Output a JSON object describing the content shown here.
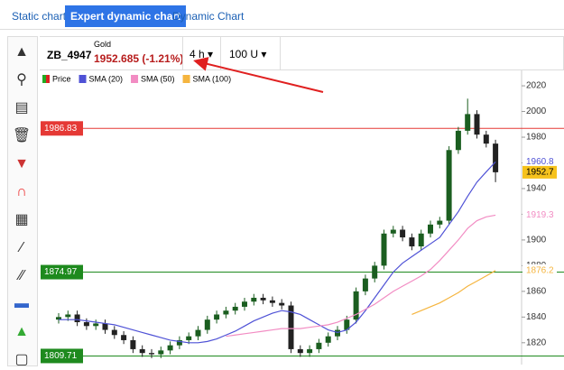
{
  "tabs": [
    "Static chart",
    "Expert dynamic chart",
    "Dynamic Chart"
  ],
  "header": {
    "symbol": "ZB_4947",
    "name": "Gold",
    "quote": "1952.685 (-1.21%)",
    "interval": "4 h",
    "units": "100 U"
  },
  "chart_data": {
    "type": "candlestick",
    "ylim": [
      1803,
      2032
    ],
    "yticks": [
      1820,
      1840,
      1860,
      1880,
      1900,
      1920,
      1940,
      1960,
      1980,
      2000,
      2020
    ],
    "price": {
      "name": "Price",
      "up_color": "#1b5e20",
      "down_color": "#222222",
      "open": [
        1838,
        1840,
        1842,
        1836,
        1833,
        1835,
        1830,
        1826,
        1822,
        1815,
        1812,
        1811,
        1814,
        1818,
        1822,
        1825,
        1830,
        1838,
        1842,
        1845,
        1848,
        1852,
        1855,
        1853,
        1851,
        1849,
        1815,
        1812,
        1815,
        1820,
        1825,
        1830,
        1838,
        1860,
        1870,
        1880,
        1905,
        1908,
        1902,
        1895,
        1905,
        1912,
        1915,
        1970,
        1985,
        1998,
        1982,
        1975
      ],
      "high": [
        1843,
        1845,
        1845,
        1839,
        1838,
        1838,
        1833,
        1829,
        1825,
        1818,
        1815,
        1817,
        1821,
        1825,
        1828,
        1833,
        1841,
        1845,
        1848,
        1851,
        1855,
        1858,
        1858,
        1856,
        1854,
        1852,
        1818,
        1818,
        1823,
        1828,
        1833,
        1841,
        1863,
        1873,
        1883,
        1908,
        1911,
        1911,
        1905,
        1908,
        1915,
        1918,
        1973,
        1988,
        2010,
        2001,
        1985,
        1978
      ],
      "low": [
        1835,
        1837,
        1833,
        1830,
        1830,
        1827,
        1823,
        1819,
        1812,
        1809,
        1808,
        1808,
        1811,
        1815,
        1819,
        1822,
        1827,
        1835,
        1839,
        1842,
        1845,
        1849,
        1850,
        1848,
        1846,
        1812,
        1809,
        1809,
        1812,
        1817,
        1822,
        1827,
        1835,
        1857,
        1867,
        1877,
        1902,
        1899,
        1892,
        1892,
        1902,
        1909,
        1912,
        1967,
        1982,
        1979,
        1972,
        1945
      ],
      "close": [
        1840,
        1842,
        1836,
        1833,
        1835,
        1830,
        1826,
        1822,
        1815,
        1812,
        1811,
        1814,
        1818,
        1822,
        1825,
        1830,
        1838,
        1842,
        1845,
        1848,
        1852,
        1855,
        1853,
        1851,
        1849,
        1815,
        1812,
        1815,
        1820,
        1825,
        1830,
        1838,
        1860,
        1870,
        1880,
        1905,
        1908,
        1902,
        1895,
        1905,
        1912,
        1915,
        1970,
        1985,
        1998,
        1982,
        1975,
        1952.7
      ]
    },
    "series": [
      {
        "name": "SMA (20)",
        "color": "#4f52d6",
        "values": [
          1838,
          1838,
          1838,
          1837,
          1836,
          1835,
          1834,
          1832,
          1830,
          1828,
          1826,
          1824,
          1822,
          1821,
          1820,
          1820,
          1821,
          1823,
          1826,
          1829,
          1833,
          1837,
          1840,
          1843,
          1845,
          1844,
          1842,
          1838,
          1834,
          1830,
          1828,
          1830,
          1836,
          1845,
          1855,
          1865,
          1875,
          1882,
          1887,
          1892,
          1897,
          1902,
          1912,
          1922,
          1934,
          1945,
          1953,
          1960.8
        ]
      },
      {
        "name": "SMA (50)",
        "color": "#f28cc3",
        "values": [
          null,
          null,
          null,
          null,
          null,
          null,
          null,
          null,
          null,
          null,
          null,
          null,
          null,
          null,
          null,
          null,
          null,
          null,
          1825,
          1826,
          1827,
          1828,
          1829,
          1830,
          1831,
          1831,
          1831,
          1832,
          1833,
          1834,
          1836,
          1839,
          1842,
          1846,
          1850,
          1855,
          1860,
          1864,
          1868,
          1872,
          1877,
          1884,
          1892,
          1900,
          1909,
          1915,
          1918,
          1919.3
        ]
      },
      {
        "name": "SMA (100)",
        "color": "#f5b53f",
        "values": [
          null,
          null,
          null,
          null,
          null,
          null,
          null,
          null,
          null,
          null,
          null,
          null,
          null,
          null,
          null,
          null,
          null,
          null,
          null,
          null,
          null,
          null,
          null,
          null,
          null,
          null,
          null,
          null,
          null,
          null,
          null,
          null,
          null,
          null,
          null,
          null,
          null,
          null,
          1842,
          1845,
          1848,
          1851,
          1855,
          1859,
          1864,
          1868,
          1872,
          1876.2
        ]
      }
    ],
    "levels": [
      {
        "value": 1986.83,
        "color": "#e53935"
      },
      {
        "value": 1874.97,
        "color": "#1e8a1e"
      },
      {
        "value": 1809.71,
        "color": "#1e8a1e"
      }
    ]
  }
}
